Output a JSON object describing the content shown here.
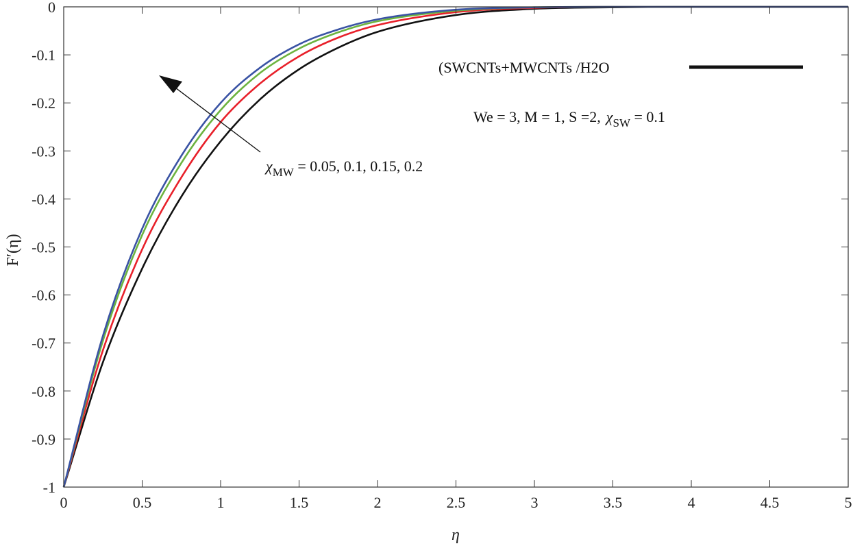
{
  "chart_data": {
    "type": "line",
    "xlabel": "η",
    "ylabel": "F′(η)",
    "xlim": [
      0,
      5
    ],
    "ylim": [
      -1,
      0
    ],
    "xticks": [
      0,
      0.5,
      1,
      1.5,
      2,
      2.5,
      3,
      3.5,
      4,
      4.5,
      5
    ],
    "xtick_labels": [
      "0",
      "0.5",
      "1",
      "1.5",
      "2",
      "2.5",
      "3",
      "3.5",
      "4",
      "4.5",
      "5"
    ],
    "yticks": [
      0,
      -0.1,
      -0.2,
      -0.3,
      -0.4,
      -0.5,
      -0.6,
      -0.7,
      -0.8,
      -0.9,
      -1
    ],
    "ytick_labels": [
      "0",
      "-0.1",
      "-0.2",
      "-0.3",
      "-0.4",
      "-0.5",
      "-0.6",
      "-0.7",
      "-0.8",
      "-0.9",
      "-1"
    ],
    "grid": false,
    "x": [
      0,
      0.25,
      0.5,
      0.75,
      1,
      1.25,
      1.5,
      1.75,
      2,
      2.5,
      3,
      3.5,
      4,
      4.5,
      5
    ],
    "series": [
      {
        "color": "#111111",
        "values": [
          -1,
          -0.74,
          -0.545,
          -0.395,
          -0.28,
          -0.193,
          -0.13,
          -0.085,
          -0.052,
          -0.017,
          -0.004,
          -0.001,
          0,
          0,
          0
        ]
      },
      {
        "color": "#e8202a",
        "values": [
          -1,
          -0.715,
          -0.505,
          -0.355,
          -0.24,
          -0.16,
          -0.103,
          -0.064,
          -0.038,
          -0.011,
          -0.002,
          0,
          0,
          0,
          0
        ]
      },
      {
        "color": "#6cb33f",
        "values": [
          -1,
          -0.695,
          -0.475,
          -0.325,
          -0.215,
          -0.138,
          -0.087,
          -0.053,
          -0.03,
          -0.008,
          -0.001,
          0,
          0,
          0,
          0
        ]
      },
      {
        "color": "#3a53a4",
        "values": [
          -1,
          -0.685,
          -0.462,
          -0.31,
          -0.2,
          -0.127,
          -0.078,
          -0.047,
          -0.026,
          -0.006,
          -0.001,
          0,
          0,
          0,
          0
        ]
      }
    ],
    "annotations": {
      "legend_text": "(SWCNTs+MWCNTs /H2O",
      "legend_line_color": "#111111",
      "params_main": "We = 3,  M = 1, S =2,",
      "params_chi_symbol": "χ",
      "params_chi_sub": "SW",
      "params_chi_value": " = 0.1",
      "arrow_chi_symbol": "χ",
      "arrow_chi_sub": "MW",
      "arrow_text": " = 0.05, 0.1, 0.15, 0.2"
    }
  }
}
